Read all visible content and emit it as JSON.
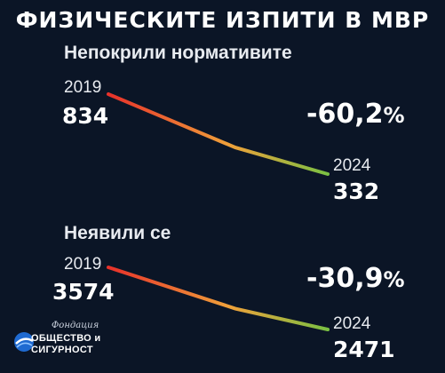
{
  "title": "ФИЗИЧЕСКИТЕ ИЗПИТИ В МВР",
  "logo": {
    "small_text": "Фондация",
    "line1": "ОБЩЕСТВО и",
    "line2": "СИГУРНОСТ"
  },
  "colors": {
    "background": "#0b1526",
    "line_start": "#e8312a",
    "line_mid": "#f0a13a",
    "line_end": "#7ac043"
  },
  "chart_data": [
    {
      "type": "line",
      "title": "Непокрили нормативите",
      "x": [
        "2019",
        "2024"
      ],
      "values": [
        834,
        332
      ],
      "start_year": "2019",
      "end_year": "2024",
      "start_value": "834",
      "end_value": "332",
      "change": "-60,2",
      "change_unit": "%"
    },
    {
      "type": "line",
      "title": "Неявили се",
      "x": [
        "2019",
        "2024"
      ],
      "values": [
        3574,
        2471
      ],
      "start_year": "2019",
      "end_year": "2024",
      "start_value": "3574",
      "end_value": "2471",
      "change": "-30,9",
      "change_unit": "%"
    }
  ]
}
